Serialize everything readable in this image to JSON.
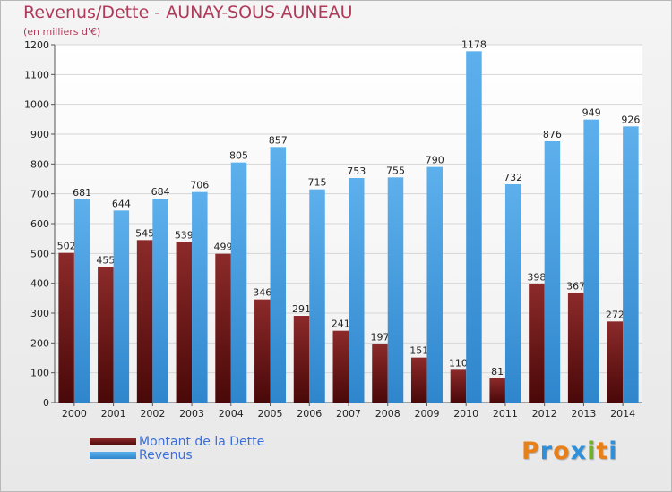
{
  "title": "Revenus/Dette - AUNAY-SOUS-AUNEAU",
  "subtitle": "(en milliers d'€)",
  "logo": {
    "text": "Proxiti",
    "letters": [
      "P",
      "r",
      "o",
      "x",
      "i",
      "t",
      "i"
    ],
    "colors": [
      "#e8801a",
      "#2f8fd8",
      "#e8801a",
      "#2f8fd8",
      "#70b02a",
      "#e8801a",
      "#2f8fd8"
    ]
  },
  "colors": {
    "dette": "#7a1a1a",
    "revenus": "#4aa0e0"
  },
  "chart_data": {
    "type": "bar",
    "categories": [
      "2000",
      "2001",
      "2002",
      "2003",
      "2004",
      "2005",
      "2006",
      "2007",
      "2008",
      "2009",
      "2010",
      "2011",
      "2012",
      "2013",
      "2014"
    ],
    "series": [
      {
        "name": "Montant de la Dette",
        "values": [
          502,
          455,
          545,
          539,
          499,
          346,
          291,
          241,
          197,
          151,
          110,
          81,
          398,
          367,
          272
        ]
      },
      {
        "name": "Revenus",
        "values": [
          681,
          644,
          684,
          706,
          805,
          857,
          715,
          753,
          755,
          790,
          1178,
          732,
          876,
          949,
          926
        ]
      }
    ],
    "yticks": [
      0,
      100,
      200,
      300,
      400,
      500,
      600,
      700,
      800,
      900,
      1000,
      1100,
      1200
    ],
    "ylim": [
      0,
      1200
    ],
    "grid": true,
    "legend": "bottom-left"
  }
}
